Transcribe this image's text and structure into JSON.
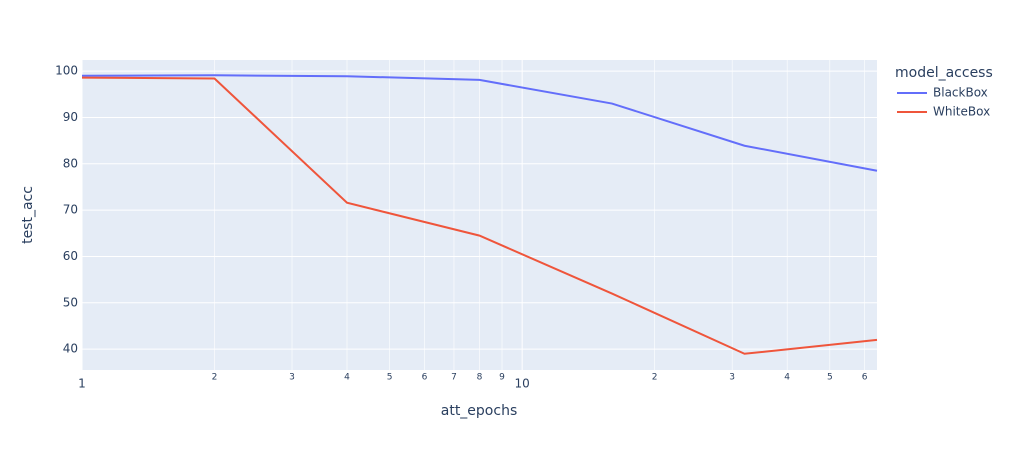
{
  "chart_data": {
    "type": "line",
    "x_label": "att_epochs",
    "y_label": "test_acc",
    "legend_title": "model_access",
    "x": [
      1,
      2,
      4,
      8,
      16,
      32,
      64
    ],
    "series": [
      {
        "name": "BlackBox",
        "color": "#636efa",
        "values": [
          99.0,
          99.1,
          98.9,
          98.1,
          93.0,
          83.9,
          78.5
        ]
      },
      {
        "name": "WhiteBox",
        "color": "#ef553b",
        "values": [
          98.6,
          98.4,
          71.6,
          64.5,
          52.0,
          39.0,
          42.0
        ]
      }
    ],
    "xlog": true,
    "xlim": [
      1,
      64
    ],
    "xticks": [
      1,
      2,
      3,
      4,
      5,
      6,
      7,
      8,
      9,
      10,
      {
        "value": 20,
        "label": "2"
      },
      {
        "value": 30,
        "label": "3"
      },
      {
        "value": 40,
        "label": "4"
      },
      {
        "value": 50,
        "label": "5"
      },
      {
        "value": 60,
        "label": "6"
      }
    ],
    "ylim": [
      35.5,
      102.4
    ],
    "yticks": [
      40,
      50,
      60,
      70,
      80,
      90,
      100
    ],
    "grid": true,
    "legend": "right"
  }
}
